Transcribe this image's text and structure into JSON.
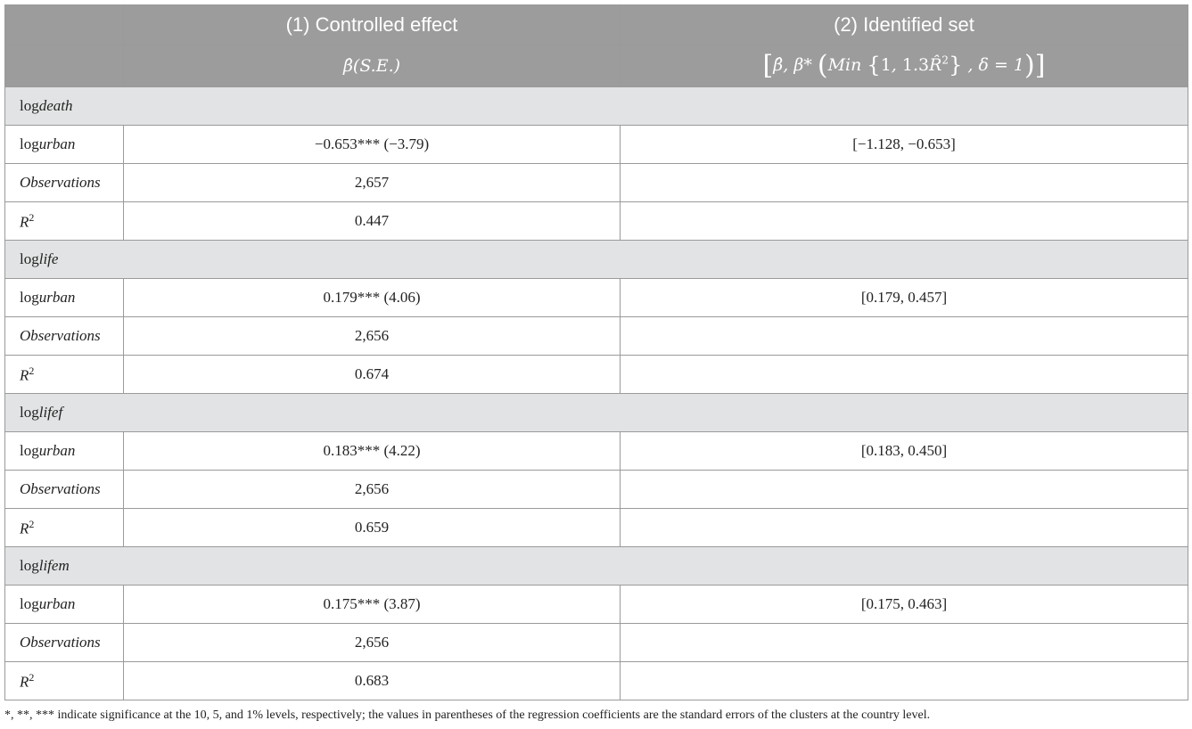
{
  "header": {
    "col1_title": "(1) Controlled effect",
    "col2_title": "(2) Identified set",
    "col1_sub": {
      "beta_hat": "β̂",
      "se": "(S.E.)"
    },
    "col2_sub": {
      "beta_hat": "β̂",
      "beta_star": "β*",
      "min": "Min",
      "one": "1",
      "coef": "1.3",
      "r_hat": "R̂",
      "sq": "2",
      "delta": "δ = 1"
    }
  },
  "groups": [
    {
      "prefix": "log",
      "var": "death",
      "rows": [
        {
          "prefix": "log",
          "name": "urban",
          "c1": "−0.653*** (−3.79)",
          "c2": "[−1.128, −0.653]"
        },
        {
          "name": "Observations",
          "c1": "2,657",
          "c2": ""
        },
        {
          "name": "R",
          "sup": "2",
          "c1": "0.447",
          "c2": ""
        }
      ]
    },
    {
      "prefix": "log",
      "var": "life",
      "rows": [
        {
          "prefix": "log",
          "name": "urban",
          "c1": "0.179*** (4.06)",
          "c2": "[0.179, 0.457]"
        },
        {
          "name": "Observations",
          "c1": "2,656",
          "c2": ""
        },
        {
          "name": "R",
          "sup": "2",
          "c1": "0.674",
          "c2": ""
        }
      ]
    },
    {
      "prefix": "log",
      "var": "lifef",
      "rows": [
        {
          "prefix": "log",
          "name": "urban",
          "c1": "0.183*** (4.22)",
          "c2": "[0.183, 0.450]"
        },
        {
          "name": "Observations",
          "c1": "2,656",
          "c2": ""
        },
        {
          "name": "R",
          "sup": "2",
          "c1": "0.659",
          "c2": ""
        }
      ]
    },
    {
      "prefix": "log",
      "var": "lifem",
      "rows": [
        {
          "prefix": "log",
          "name": "urban",
          "c1": "0.175*** (3.87)",
          "c2": "[0.175, 0.463]"
        },
        {
          "name": "Observations",
          "c1": "2,656",
          "c2": ""
        },
        {
          "name": "R",
          "sup": "2",
          "c1": "0.683",
          "c2": ""
        }
      ]
    }
  ],
  "footnote": "*, **, *** indicate significance at the 10, 5, and 1% levels, respectively; the values in parentheses of the regression coefficients are the standard errors of the clusters at the country level.",
  "colors": {
    "header_bg": "#9c9c9c",
    "group_bg": "#e2e3e4",
    "border": "#9a9a9a"
  }
}
